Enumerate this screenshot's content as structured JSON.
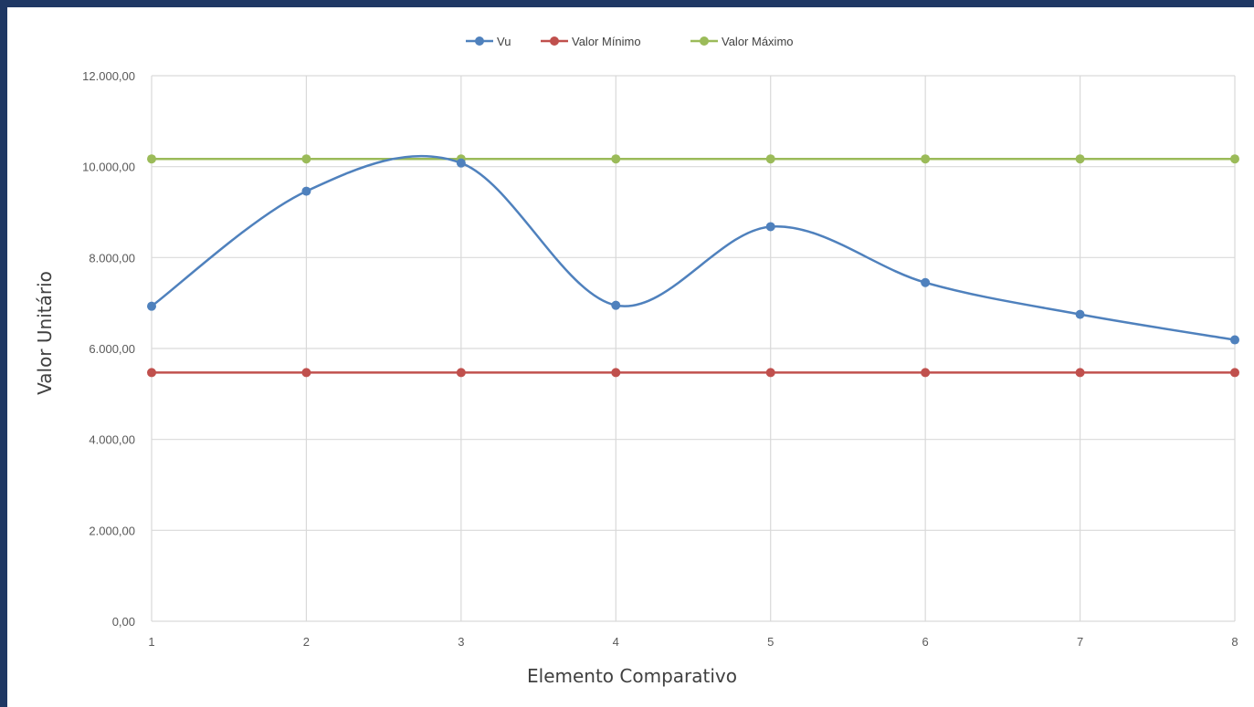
{
  "chart_data": {
    "type": "line",
    "x": [
      1,
      2,
      3,
      4,
      5,
      6,
      7,
      8
    ],
    "xlabel": "Elemento Comparativo",
    "ylabel": "Valor Unitário",
    "ylim": [
      0,
      12000
    ],
    "yticks": [
      0,
      2000,
      4000,
      6000,
      8000,
      10000,
      12000
    ],
    "ytick_labels": [
      "0,00",
      "2.000,00",
      "4.000,00",
      "6.000,00",
      "8.000,00",
      "10.000,00",
      "12.000,00"
    ],
    "xtick_labels": [
      "1",
      "2",
      "3",
      "4",
      "5",
      "6",
      "7",
      "8"
    ],
    "grid": true,
    "legend_position": "top",
    "series": [
      {
        "name": "Vu",
        "color": "#4f81bd",
        "smooth": true,
        "values": [
          6930,
          9460,
          10080,
          6950,
          8680,
          7450,
          6750,
          6190
        ]
      },
      {
        "name": "Valor Mínimo",
        "color": "#c0504d",
        "smooth": false,
        "values": [
          5470,
          5470,
          5470,
          5470,
          5470,
          5470,
          5470,
          5470
        ]
      },
      {
        "name": "Valor Máximo",
        "color": "#9bbb59",
        "smooth": false,
        "values": [
          10170,
          10170,
          10170,
          10170,
          10170,
          10170,
          10170,
          10170
        ]
      }
    ]
  }
}
